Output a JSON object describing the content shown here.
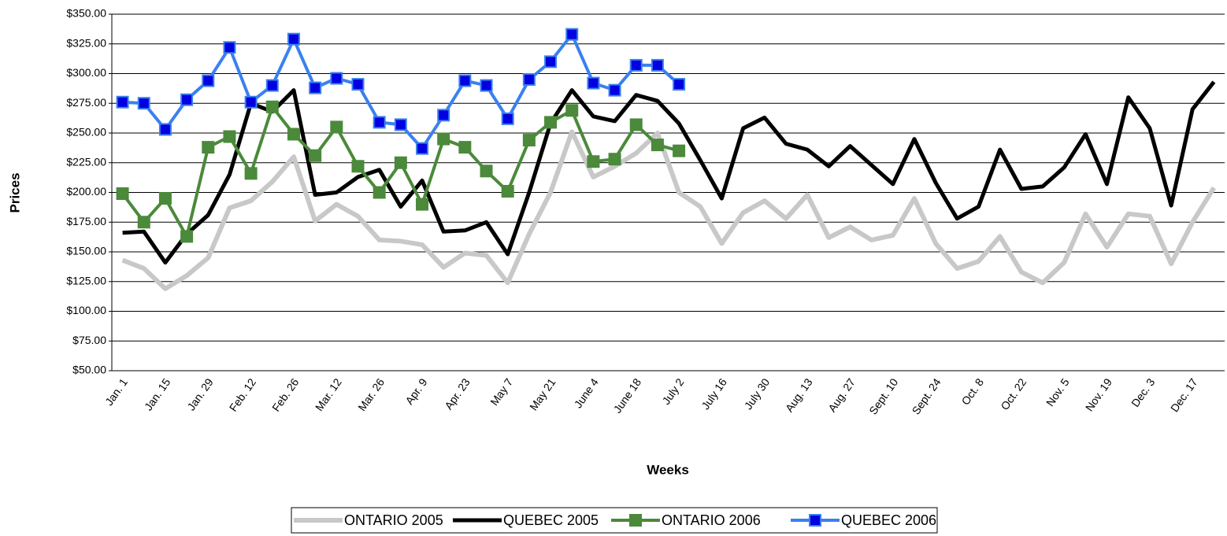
{
  "chart_data": {
    "type": "line",
    "y_label": "Prices",
    "x_label": "Weeks",
    "categories": [
      "Jan. 1",
      null,
      "Jan. 15",
      null,
      "Jan. 29",
      null,
      "Feb. 12",
      null,
      "Feb. 26",
      null,
      "Mar. 12",
      null,
      "Mar. 26",
      null,
      "Apr. 9",
      null,
      "Apr. 23",
      null,
      "May 7",
      null,
      "May 21",
      null,
      "June 4",
      null,
      "June 18",
      null,
      "July 2",
      null,
      "July 16",
      null,
      "July 30",
      null,
      "Aug. 13",
      null,
      "Aug. 27",
      null,
      "Sept. 10",
      null,
      "Sept. 24",
      null,
      "Oct. 8",
      null,
      "Oct. 22",
      null,
      "Nov. 5",
      null,
      "Nov. 19",
      null,
      "Dec. 3",
      null,
      "Dec. 17",
      null
    ],
    "series": [
      {
        "name": "ONTARIO 2005",
        "color": "#c8c8c8",
        "marker": "none",
        "values": [
          143,
          136,
          119,
          130,
          145,
          187,
          193,
          209,
          230,
          176,
          190,
          180,
          160,
          159,
          156,
          137,
          149,
          147,
          124,
          165,
          200,
          251,
          213,
          222,
          233,
          250,
          200,
          188,
          157,
          183,
          193,
          178,
          198,
          162,
          171,
          160,
          164,
          195,
          157,
          136,
          142,
          163,
          133,
          124,
          141,
          182,
          154,
          182,
          180,
          140,
          175,
          204
        ]
      },
      {
        "name": "QUEBEC 2005",
        "color": "#000000",
        "marker": "none",
        "values": [
          166,
          167,
          141,
          165,
          181,
          215,
          275,
          268,
          286,
          198,
          200,
          213,
          219,
          188,
          210,
          167,
          168,
          175,
          148,
          200,
          258,
          286,
          264,
          260,
          282,
          277,
          258,
          227,
          195,
          254,
          263,
          241,
          236,
          222,
          239,
          223,
          207,
          245,
          208,
          178,
          188,
          236,
          203,
          205,
          221,
          249,
          207,
          280,
          254,
          189,
          270,
          293
        ]
      },
      {
        "name": "ONTARIO 2006",
        "color": "#4a8a3a",
        "marker": "square",
        "marker_color": "#4a8a3a",
        "values": [
          199,
          175,
          195,
          163,
          238,
          247,
          216,
          272,
          249,
          231,
          255,
          222,
          200,
          225,
          190,
          245,
          238,
          218,
          201,
          244,
          259,
          269,
          226,
          228,
          257,
          240,
          235,
          null,
          null,
          null,
          null,
          null,
          null,
          null,
          null,
          null,
          null,
          null,
          null,
          null,
          null,
          null,
          null,
          null,
          null,
          null,
          null,
          null,
          null,
          null,
          null,
          null
        ]
      },
      {
        "name": "QUEBEC 2006",
        "color": "#3a80f0",
        "marker": "square",
        "marker_color": "#0000e0",
        "values": [
          276,
          275,
          253,
          278,
          294,
          322,
          276,
          290,
          329,
          288,
          296,
          291,
          259,
          257,
          237,
          265,
          294,
          290,
          262,
          295,
          310,
          333,
          292,
          286,
          307,
          307,
          291,
          null,
          null,
          null,
          null,
          null,
          null,
          null,
          null,
          null,
          null,
          null,
          null,
          null,
          null,
          null,
          null,
          null,
          null,
          null,
          null,
          null,
          null,
          null,
          null,
          null
        ]
      }
    ],
    "ylim": [
      50,
      350
    ],
    "yticks": [
      {
        "value": 50,
        "label": "$50.00"
      },
      {
        "value": 75,
        "label": "$75.00"
      },
      {
        "value": 100,
        "label": "$100.00"
      },
      {
        "value": 125,
        "label": "$125.00"
      },
      {
        "value": 150,
        "label": "$150.00"
      },
      {
        "value": 175,
        "label": "$175.00"
      },
      {
        "value": 200,
        "label": "$200.00"
      },
      {
        "value": 225,
        "label": "$225.00"
      },
      {
        "value": 250,
        "label": "$250.00"
      },
      {
        "value": 275,
        "label": "$275.00"
      },
      {
        "value": 300,
        "label": "$300.00"
      },
      {
        "value": 325,
        "label": "$325.00"
      },
      {
        "value": 350,
        "label": "$350.00"
      }
    ],
    "grid": true,
    "legend": "bottom"
  }
}
